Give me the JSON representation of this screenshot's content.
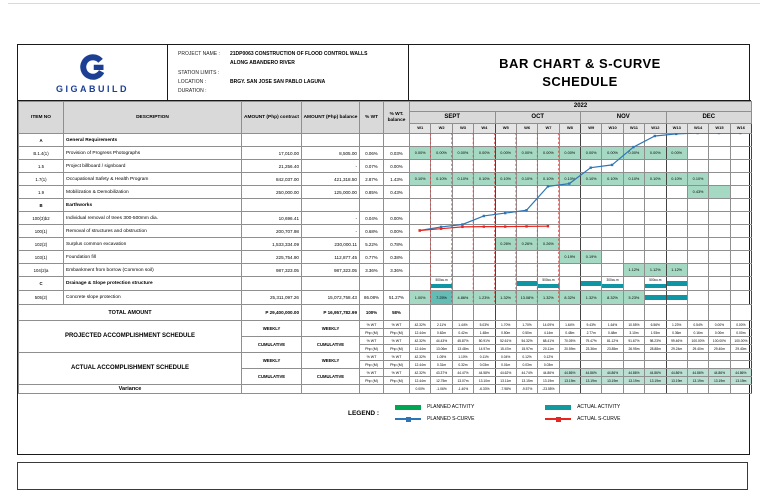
{
  "header": {
    "logo_text": "GIGABUILD",
    "fields": [
      {
        "label": "PROJECT NAME :",
        "value": "21DP0063 CONSTRUCTION OF FLOOD CONTROL WALLS"
      },
      {
        "label": "",
        "value": "ALONG ABANDERO RIVER"
      },
      {
        "label": "STATION LIMITS :",
        "value": ""
      },
      {
        "label": "LOCATION :",
        "value": "BRGY. SAN JOSE SAN PABLO LAGUNA"
      },
      {
        "label": "DURATION :",
        "value": ""
      }
    ],
    "title_line1": "BAR CHART & S-CURVE",
    "title_line2": "SCHEDULE"
  },
  "table": {
    "columns": [
      "ITEM NO",
      "DESCRIPTION",
      "AMOUNT (Php) contract",
      "AMOUNT (Php) balance",
      "% WT",
      "% WT. balance"
    ],
    "year": "2022",
    "months": [
      {
        "name": "SEPT",
        "weeks": [
          "W1",
          "W2",
          "W3",
          "W4"
        ]
      },
      {
        "name": "OCT",
        "weeks": [
          "W5",
          "W6",
          "W7",
          "W8"
        ]
      },
      {
        "name": "NOV",
        "weeks": [
          "W9",
          "W10",
          "W11",
          "W12"
        ]
      },
      {
        "name": "DEC",
        "weeks": [
          "W13",
          "W14",
          "W15",
          "W16"
        ]
      }
    ],
    "rows": [
      {
        "item": "A",
        "desc": "General Requirements",
        "section": true,
        "contract": "",
        "balance": "",
        "wt": "",
        "wt_bal": "",
        "cells": []
      },
      {
        "item": "B.1.4(1)",
        "desc": "Provision of Progress Photographs",
        "section": false,
        "contract": "17,010.00",
        "balance": "8,505.00",
        "wt": "0.06%",
        "wt_bal": "0.03%",
        "cells": [
          {
            "w": 1,
            "t": "0.00%",
            "c": "g"
          },
          {
            "w": 2,
            "t": "0.00%",
            "c": "g"
          },
          {
            "w": 3,
            "t": "0.00%",
            "c": "g"
          },
          {
            "w": 4,
            "t": "0.00%",
            "c": "g"
          },
          {
            "w": 5,
            "t": "0.00%",
            "c": "g"
          },
          {
            "w": 6,
            "t": "0.00%",
            "c": "g"
          },
          {
            "w": 7,
            "t": "0.00%",
            "c": "g"
          },
          {
            "w": 8,
            "t": "0.00%",
            "c": "g"
          },
          {
            "w": 9,
            "t": "0.00%",
            "c": "g"
          },
          {
            "w": 10,
            "t": "0.00%",
            "c": "g"
          },
          {
            "w": 11,
            "t": "0.00%",
            "c": "g"
          },
          {
            "w": 12,
            "t": "0.00%",
            "c": "g"
          },
          {
            "w": 13,
            "t": "0.00%",
            "c": "g"
          }
        ]
      },
      {
        "item": "1.5",
        "desc": "Project billboard / signboard",
        "section": false,
        "contract": "21,256.40",
        "balance": "-",
        "wt": "0.07%",
        "wt_bal": "0.00%",
        "cells": []
      },
      {
        "item": "1.7(1)",
        "desc": "Occupational Safety & Health Program",
        "section": false,
        "contract": "842,037.00",
        "balance": "421,318.50",
        "wt": "2.87%",
        "wt_bal": "1.43%",
        "cells": [
          {
            "w": 1,
            "t": "0.10%",
            "c": "g"
          },
          {
            "w": 2,
            "t": "0.10%",
            "c": "g"
          },
          {
            "w": 3,
            "t": "0.10%",
            "c": "g"
          },
          {
            "w": 4,
            "t": "0.10%",
            "c": "g"
          },
          {
            "w": 5,
            "t": "0.10%",
            "c": "g"
          },
          {
            "w": 6,
            "t": "0.10%",
            "c": "g"
          },
          {
            "w": 7,
            "t": "0.10%",
            "c": "g"
          },
          {
            "w": 8,
            "t": "0.10%",
            "c": "g"
          },
          {
            "w": 9,
            "t": "0.10%",
            "c": "g"
          },
          {
            "w": 10,
            "t": "0.10%",
            "c": "g"
          },
          {
            "w": 11,
            "t": "0.10%",
            "c": "g"
          },
          {
            "w": 12,
            "t": "0.10%",
            "c": "g"
          },
          {
            "w": 13,
            "t": "0.10%",
            "c": "g"
          },
          {
            "w": 14,
            "t": "0.10%",
            "c": "g"
          }
        ]
      },
      {
        "item": "1.9",
        "desc": "Mobilization & Demobilization",
        "section": false,
        "contract": "250,000.00",
        "balance": "125,000.00",
        "wt": "0.85%",
        "wt_bal": "0.43%",
        "cells": [
          {
            "w": 14,
            "t": "0.43%",
            "c": "g"
          },
          {
            "w": 15,
            "t": "",
            "c": "g"
          }
        ]
      },
      {
        "item": "B",
        "desc": "Earthworks",
        "section": true,
        "contract": "",
        "balance": "",
        "wt": "",
        "wt_bal": "",
        "cells": []
      },
      {
        "item": "100(3)b2",
        "desc": "Individual removal of trees 300-500mm dia.",
        "section": false,
        "contract": "10,696.41",
        "balance": "-",
        "wt": "0.04%",
        "wt_bal": "0.00%",
        "cells": []
      },
      {
        "item": "100(1)",
        "desc": "Removal of structures and obstruction",
        "section": false,
        "contract": "200,707.98",
        "balance": "-",
        "wt": "0.68%",
        "wt_bal": "0.00%",
        "cells": []
      },
      {
        "item": "102(2)",
        "desc": "Surplus common excavation",
        "section": false,
        "contract": "1,533,334.09",
        "balance": "230,000.11",
        "wt": "5.22%",
        "wt_bal": "0.78%",
        "cells": [
          {
            "w": 5,
            "t": "0.26%",
            "c": "g"
          },
          {
            "w": 6,
            "t": "0.26%",
            "c": "g"
          },
          {
            "w": 7,
            "t": "0.26%",
            "c": "g"
          }
        ]
      },
      {
        "item": "103(1)",
        "desc": "Foundation fill",
        "section": false,
        "contract": "225,754.90",
        "balance": "112,877.45",
        "wt": "0.77%",
        "wt_bal": "0.38%",
        "cells": [
          {
            "w": 8,
            "t": "0.19%",
            "c": "g"
          },
          {
            "w": 9,
            "t": "0.19%",
            "c": "g"
          }
        ]
      },
      {
        "item": "104(2)a",
        "desc": "Embankment from borrow (Common soil)",
        "section": false,
        "contract": "987,323.05",
        "balance": "987,323.05",
        "wt": "3.36%",
        "wt_bal": "3.36%",
        "cells": [
          {
            "w": 11,
            "t": "1.12%",
            "c": "g"
          },
          {
            "w": 12,
            "t": "1.12%",
            "c": "g"
          },
          {
            "w": 13,
            "t": "1.12%",
            "c": "g"
          }
        ]
      },
      {
        "item": "C",
        "desc": "Drainage & Slope protection structure",
        "section": true,
        "contract": "",
        "balance": "",
        "wt": "",
        "wt_bal": "",
        "cells": [
          {
            "w": 2,
            "t": "500cu.m",
            "c": "lbl"
          },
          {
            "w": 6,
            "c": "bar"
          },
          {
            "w": 7,
            "t": "500cu.m",
            "c": "lbl"
          },
          {
            "w": 9,
            "c": "bar"
          },
          {
            "w": 10,
            "t": "300cu.m",
            "c": "lbl"
          },
          {
            "w": 12,
            "t": "500cu.m",
            "c": "lbl"
          },
          {
            "w": 13,
            "c": "bar"
          }
        ]
      },
      {
        "item": "505(2)",
        "desc": "Concrete slope protection",
        "section": false,
        "contract": "25,311,097.26",
        "balance": "15,072,758.43",
        "wt": "86.08%",
        "wt_bal": "51.27%",
        "cells": [
          {
            "w": 1,
            "t": "1.00%",
            "c": "g"
          },
          {
            "w": 2,
            "t": "7.25%",
            "c": "t"
          },
          {
            "w": 3,
            "t": "4.86%",
            "c": "g"
          },
          {
            "w": 4,
            "t": "1.23%",
            "c": "g"
          },
          {
            "w": 5,
            "t": "1.32%",
            "c": "g"
          },
          {
            "w": 6,
            "t": "13.08%",
            "c": "g"
          },
          {
            "w": 7,
            "t": "1.32%",
            "c": "g"
          },
          {
            "w": 8,
            "t": "8.32%",
            "c": "g"
          },
          {
            "w": 9,
            "t": "1.32%",
            "c": "g"
          },
          {
            "w": 10,
            "t": "8.32%",
            "c": "g"
          },
          {
            "w": 11,
            "t": "5.23%",
            "c": "g"
          },
          {
            "w": 12,
            "c": "bar"
          },
          {
            "w": 13,
            "c": "bar"
          }
        ]
      }
    ],
    "total": {
      "label": "TOTAL AMOUNT",
      "contract": "P 29,400,000.00",
      "balance": "P 16,957,782.99",
      "wt": "100%",
      "wt_bal": "58%"
    }
  },
  "schedule": {
    "projected": {
      "label": "PROJECTED ACCOMPLISHMENT SCHEDULE",
      "weekly_label": "WEEKLY",
      "cumulative_label": "CUMULATIVE",
      "pct_label": "% WT",
      "php_label": "Php (M)",
      "weekly_pct": [
        "42.32%",
        "2.11%",
        "1.44%",
        "5.03%",
        "1.70%",
        "1.70%",
        "14.09%",
        "1.64%",
        "9.43%",
        "1.64%",
        "10.55%",
        "6.56%",
        "1.23%",
        "0.54%",
        "0.00%",
        "0.00%"
      ],
      "weekly_php": [
        "12.44m",
        "0.62m",
        "0.42m",
        "1.48m",
        "0.50m",
        "0.50m",
        "4.14m",
        "0.48m",
        "2.77m",
        "0.48m",
        "3.10m",
        "1.93m",
        "0.36m",
        "0.16m",
        "0.00m",
        "0.00m"
      ],
      "cumulative_pct": [
        "42.32%",
        "44.43%",
        "45.87%",
        "50.91%",
        "52.61%",
        "54.32%",
        "68.41%",
        "70.05%",
        "79.47%",
        "81.12%",
        "91.67%",
        "98.23%",
        "99.46%",
        "100.00%",
        "100.00%",
        "100.00%"
      ],
      "cumulative_php": [
        "12.44m",
        "13.06m",
        "13.48m",
        "14.97m",
        "15.47m",
        "15.97m",
        "20.11m",
        "20.59m",
        "23.36m",
        "23.85m",
        "26.95m",
        "28.88m",
        "29.24m",
        "29.40m",
        "29.40m",
        "29.40m"
      ]
    },
    "actual": {
      "label": "ACTUAL ACCOMPLISHMENT SCHEDULE",
      "weekly_label": "WEEKLY",
      "cumulative_label": "CUMULATIVE",
      "pct_label": "% WT",
      "php_label": "Php (M)",
      "weekly_pct": [
        "42.32%",
        "1.05%",
        "1.10%",
        "0.11%",
        "0.04%",
        "0.12%",
        "0.12%",
        "",
        "",
        "",
        "",
        "",
        "",
        "",
        "",
        ""
      ],
      "weekly_php": [
        "12.44m",
        "0.31m",
        "0.32m",
        "0.03m",
        "0.01m",
        "0.03m",
        "0.03m",
        "",
        "",
        "",
        "",
        "",
        "",
        "",
        "",
        ""
      ],
      "cumulative_pct": [
        "42.32%",
        "43.37%",
        "44.47%",
        "44.58%",
        "44.62%",
        "44.74%",
        "44.86%",
        "44.86%",
        "44.86%",
        "44.86%",
        "44.86%",
        "44.86%",
        "44.86%",
        "44.86%",
        "44.86%",
        "44.86%"
      ],
      "cumulative_php": [
        "12.44m",
        "12.75m",
        "13.07m",
        "13.10m",
        "13.11m",
        "13.15m",
        "13.19m",
        "13.19m",
        "13.19m",
        "13.19m",
        "13.19m",
        "13.19m",
        "13.19m",
        "13.19m",
        "13.19m",
        "13.19m"
      ]
    },
    "variance": {
      "label": "Variance",
      "values": [
        "0.00%",
        "-1.06%",
        "-1.40%",
        "-6.33%",
        "-7.98%",
        "-9.57%",
        "-23.55%",
        "",
        "",
        "",
        "",
        "",
        "",
        "",
        "",
        ""
      ]
    }
  },
  "legend": {
    "label": "LEGEND :",
    "items": [
      {
        "name": "PLANNED ACTIVITY",
        "color": "#00a651",
        "type": "bar"
      },
      {
        "name": "ACTUAL ACTIVITY",
        "color": "#11999e",
        "type": "bar"
      },
      {
        "name": "PLANNED S-CURVE",
        "color": "#2e75b6",
        "type": "line"
      },
      {
        "name": "ACTUAL S-CURVE",
        "color": "#e8251f",
        "type": "line"
      }
    ]
  },
  "chart_data": {
    "type": "line",
    "title": "S-Curve cumulative % accomplishment",
    "x": [
      "W1",
      "W2",
      "W3",
      "W4",
      "W5",
      "W6",
      "W7",
      "W8",
      "W9",
      "W10",
      "W11",
      "W12",
      "W13",
      "W14",
      "W15",
      "W16"
    ],
    "series": [
      {
        "name": "PLANNED S-CURVE",
        "values": [
          42.32,
          44.43,
          45.87,
          50.91,
          52.61,
          54.32,
          68.41,
          70.05,
          79.47,
          81.12,
          91.67,
          98.23,
          99.46,
          100,
          100,
          100
        ]
      },
      {
        "name": "ACTUAL S-CURVE",
        "values": [
          42.32,
          43.37,
          44.47,
          44.58,
          44.62,
          44.74,
          44.86,
          null,
          null,
          null,
          null,
          null,
          null,
          null,
          null,
          null
        ]
      }
    ],
    "ylim": [
      0,
      100
    ],
    "cutoff_weeks": 7,
    "legend_position": "bottom"
  }
}
